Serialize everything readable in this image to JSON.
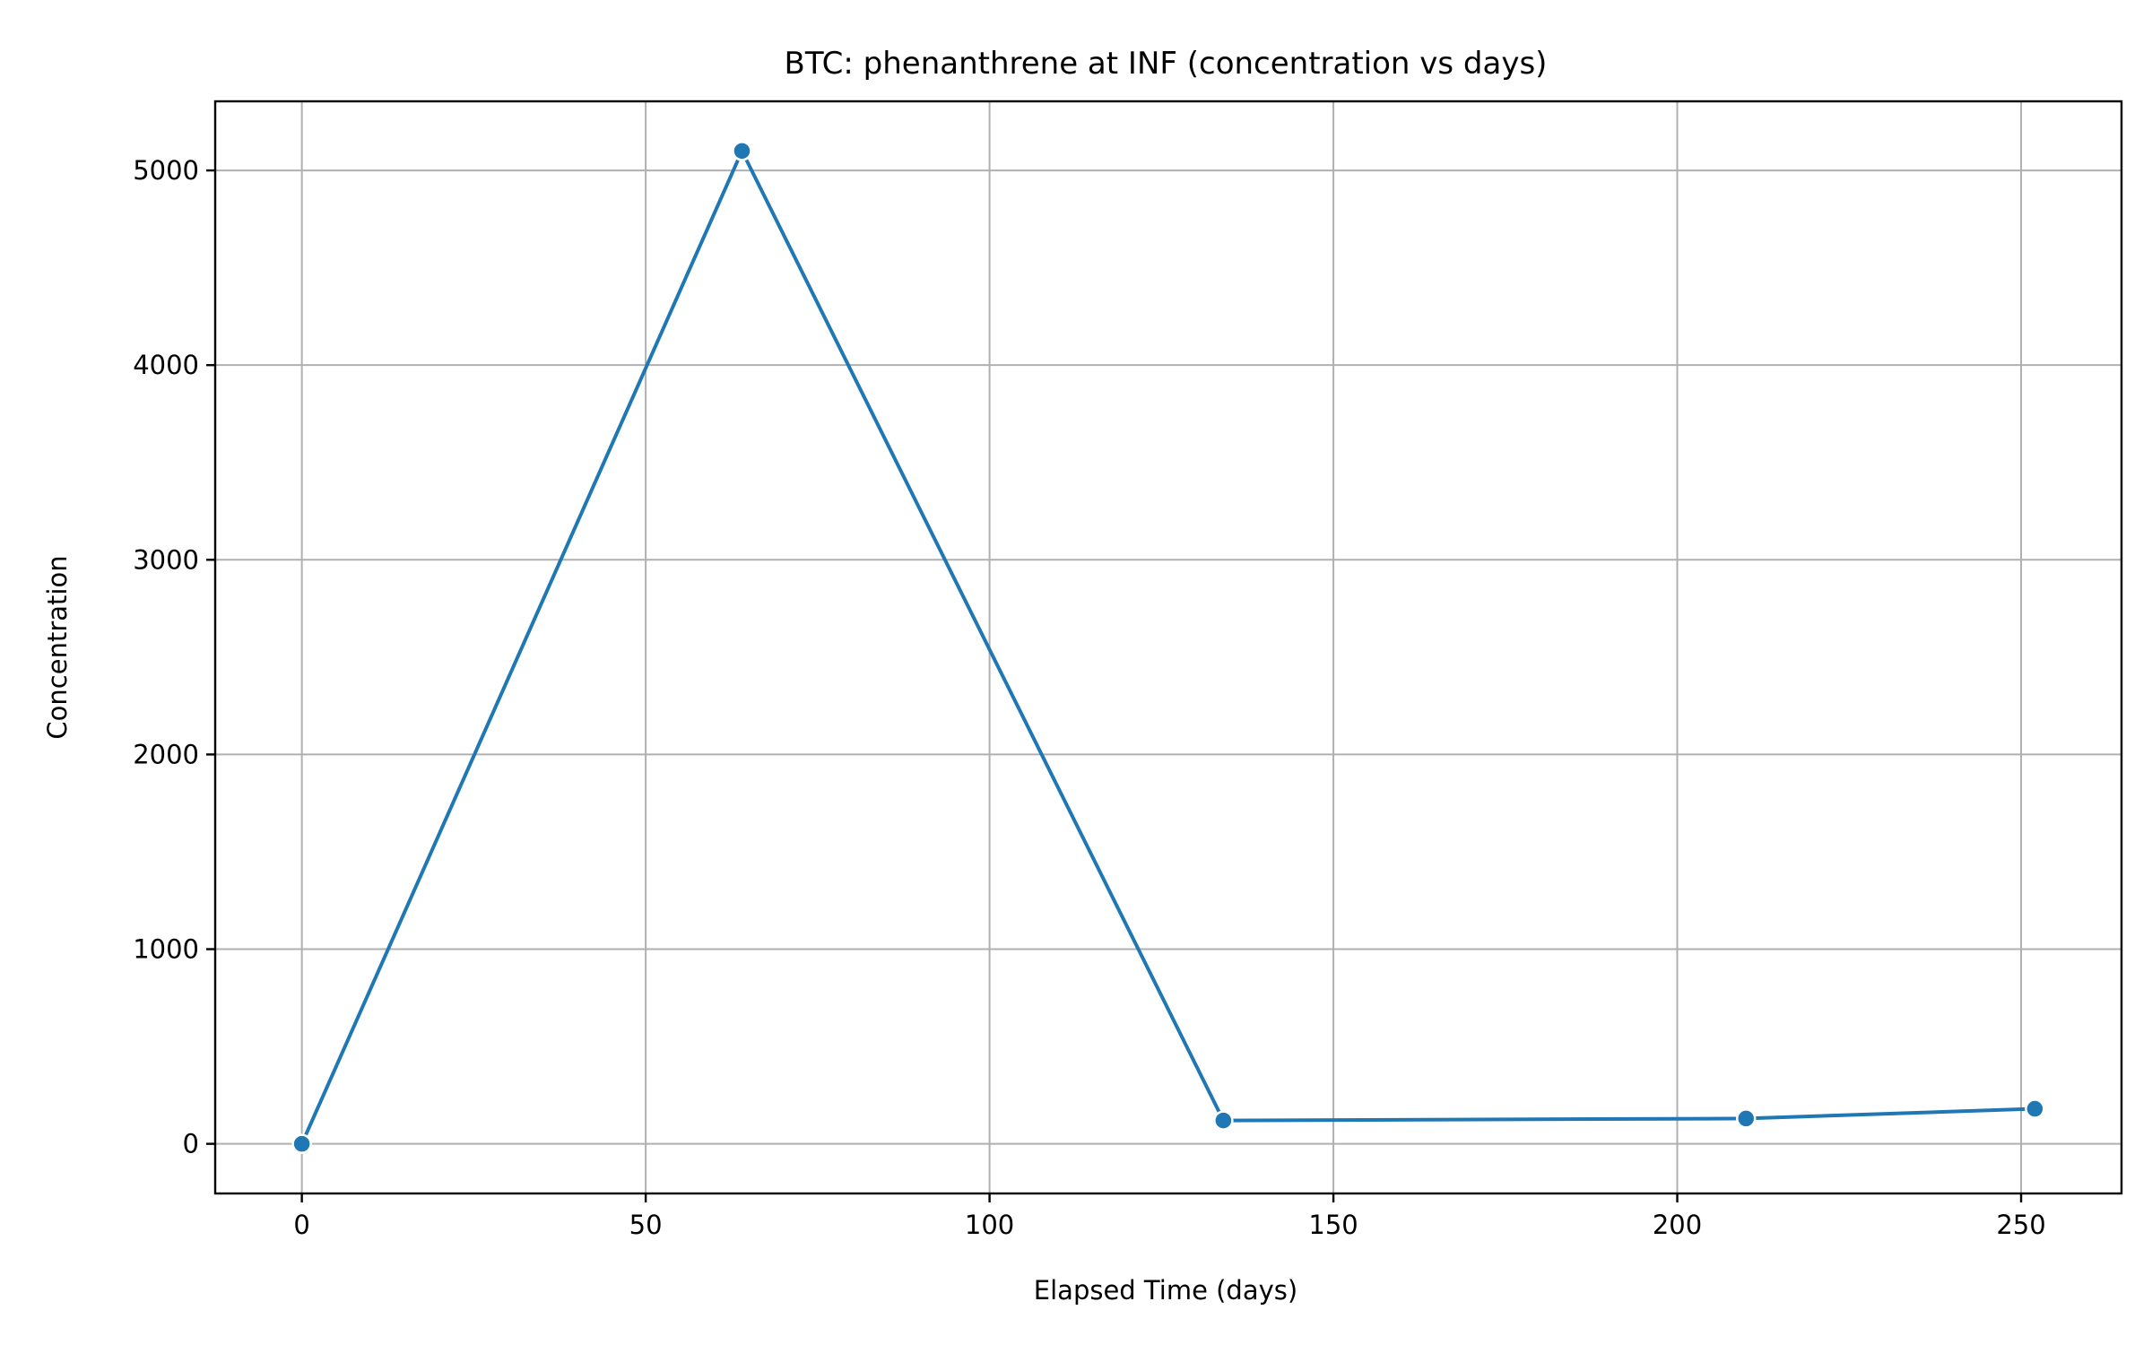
{
  "chart_data": {
    "type": "line",
    "title": "BTC: phenanthrene at INF (concentration vs days)",
    "xlabel": "Elapsed Time (days)",
    "ylabel": "Concentration",
    "xlim": [
      -12.6,
      264.6
    ],
    "ylim": [
      -255,
      5355
    ],
    "xticks": [
      0,
      50,
      100,
      150,
      200,
      250
    ],
    "yticks": [
      0,
      1000,
      2000,
      3000,
      4000,
      5000
    ],
    "grid": true,
    "series": [
      {
        "color": "#1f77b4",
        "marker": "circle",
        "x": [
          0,
          64,
          134,
          210,
          252
        ],
        "y": [
          0,
          5100,
          120,
          130,
          180
        ]
      }
    ]
  }
}
